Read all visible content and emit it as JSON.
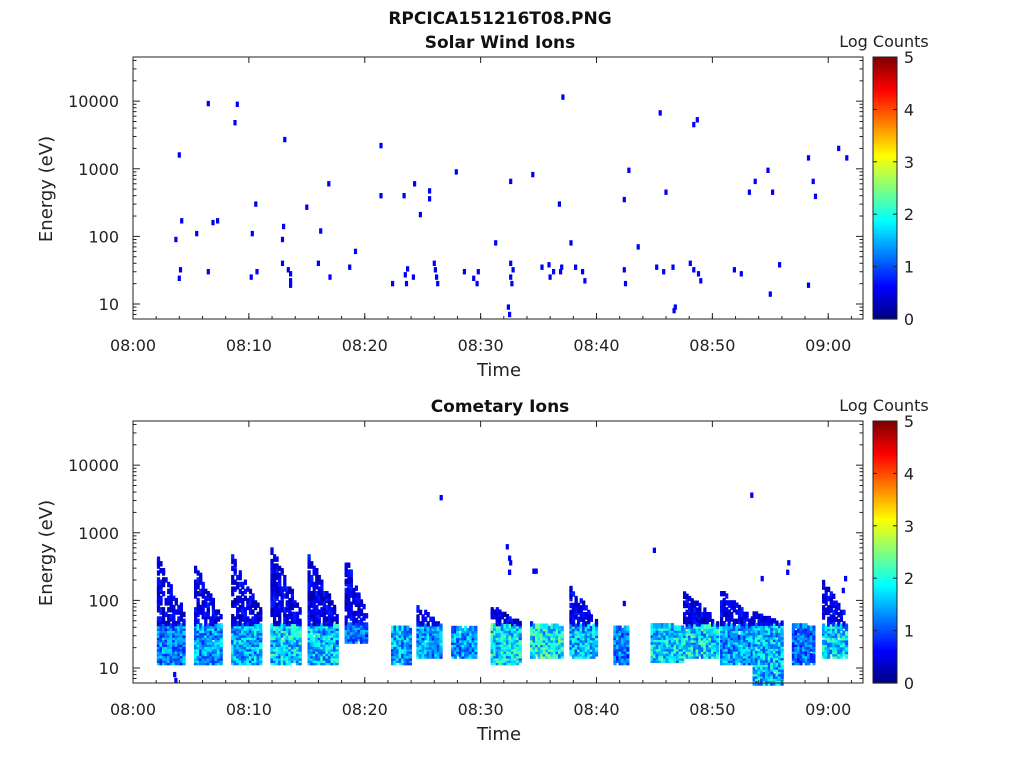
{
  "figure": {
    "title": "RPCICA151216T08.PNG"
  },
  "colormap": {
    "stops": [
      "#00007f",
      "#0000ff",
      "#007fff",
      "#00ffff",
      "#7fff7f",
      "#ffff00",
      "#ff7f00",
      "#ff0000",
      "#7f0000"
    ]
  },
  "chart_data": [
    {
      "type": "heatmap",
      "title": "Solar Wind Ions",
      "xlabel": "Time",
      "ylabel": "Energy (eV)",
      "yscale": "log",
      "ylim": [
        6,
        45000
      ],
      "xlim_minutes_after_0800": [
        0,
        63
      ],
      "xticks": [
        "08:00",
        "08:10",
        "08:20",
        "08:30",
        "08:40",
        "08:50",
        "09:00"
      ],
      "yticks": [
        "10",
        "100",
        "1000",
        "10000"
      ],
      "colorbar": {
        "label": "Log Counts",
        "range": [
          0,
          5
        ],
        "ticks": [
          "0",
          "1",
          "2",
          "3",
          "4",
          "5"
        ]
      },
      "grid": false,
      "cells": [
        [
          3.7,
          90,
          0.6
        ],
        [
          4.0,
          1600,
          0.6
        ],
        [
          4.2,
          170,
          0.6
        ],
        [
          5.5,
          110,
          0.6
        ],
        [
          6.5,
          9200,
          0.6
        ],
        [
          6.9,
          160,
          0.6
        ],
        [
          7.3,
          170,
          0.6
        ],
        [
          8.8,
          4800,
          0.6
        ],
        [
          9.0,
          9000,
          0.6
        ],
        [
          10.3,
          110,
          0.6
        ],
        [
          10.6,
          300,
          0.6
        ],
        [
          12.9,
          90,
          0.6
        ],
        [
          13.0,
          140,
          0.6
        ],
        [
          13.1,
          2700,
          0.6
        ],
        [
          15.0,
          270,
          0.6
        ],
        [
          16.2,
          120,
          0.6
        ],
        [
          16.9,
          600,
          0.6
        ],
        [
          19.2,
          60,
          0.6
        ],
        [
          21.4,
          2200,
          0.6
        ],
        [
          21.4,
          400,
          0.6
        ],
        [
          23.4,
          400,
          0.6
        ],
        [
          24.3,
          600,
          0.6
        ],
        [
          24.8,
          210,
          0.6
        ],
        [
          25.6,
          470,
          0.6
        ],
        [
          25.6,
          360,
          0.6
        ],
        [
          27.9,
          900,
          0.6
        ],
        [
          31.3,
          80,
          0.6
        ],
        [
          32.6,
          650,
          0.6
        ],
        [
          34.5,
          820,
          0.6
        ],
        [
          36.8,
          300,
          0.6
        ],
        [
          37.1,
          11500,
          0.6
        ],
        [
          37.8,
          80,
          0.6
        ],
        [
          42.4,
          350,
          0.6
        ],
        [
          42.8,
          950,
          0.6
        ],
        [
          43.6,
          70,
          0.6
        ],
        [
          45.5,
          6700,
          0.6
        ],
        [
          46.0,
          450,
          0.6
        ],
        [
          48.4,
          4500,
          0.6
        ],
        [
          48.7,
          5300,
          0.6
        ],
        [
          53.2,
          450,
          0.6
        ],
        [
          53.7,
          650,
          0.6
        ],
        [
          54.8,
          950,
          0.6
        ],
        [
          55.2,
          450,
          0.6
        ],
        [
          58.3,
          1450,
          0.6
        ],
        [
          58.7,
          650,
          0.6
        ],
        [
          58.9,
          390,
          0.6
        ],
        [
          60.9,
          2000,
          0.6
        ],
        [
          61.6,
          1450,
          0.6
        ],
        [
          4.1,
          32,
          0.6
        ],
        [
          4.0,
          24,
          0.6
        ],
        [
          6.5,
          30,
          0.6
        ],
        [
          10.2,
          25,
          0.6
        ],
        [
          10.7,
          30,
          0.6
        ],
        [
          12.9,
          40,
          0.6
        ],
        [
          13.4,
          32,
          0.6
        ],
        [
          13.6,
          28,
          0.6
        ],
        [
          13.6,
          22,
          0.6
        ],
        [
          13.6,
          19,
          0.6
        ],
        [
          16.0,
          40,
          0.6
        ],
        [
          17.0,
          25,
          0.6
        ],
        [
          18.7,
          35,
          0.6
        ],
        [
          22.4,
          20,
          0.6
        ],
        [
          23.5,
          27,
          0.6
        ],
        [
          23.7,
          33,
          0.6
        ],
        [
          23.6,
          20,
          0.6
        ],
        [
          24.2,
          25,
          0.6
        ],
        [
          26.0,
          40,
          0.6
        ],
        [
          26.1,
          32,
          0.6
        ],
        [
          26.2,
          25,
          0.6
        ],
        [
          26.3,
          20,
          0.6
        ],
        [
          28.6,
          30,
          0.6
        ],
        [
          29.4,
          24,
          0.6
        ],
        [
          29.8,
          30,
          0.6
        ],
        [
          29.7,
          20,
          0.6
        ],
        [
          32.6,
          40,
          0.6
        ],
        [
          32.8,
          32,
          0.6
        ],
        [
          32.6,
          25,
          0.6
        ],
        [
          32.7,
          20,
          0.6
        ],
        [
          32.4,
          9,
          0.6
        ],
        [
          32.5,
          7,
          0.6
        ],
        [
          35.3,
          35,
          0.6
        ],
        [
          35.9,
          38,
          0.6
        ],
        [
          36.3,
          30,
          0.6
        ],
        [
          36.0,
          25,
          0.6
        ],
        [
          36.9,
          30,
          0.6
        ],
        [
          37.0,
          35,
          0.6
        ],
        [
          38.2,
          35,
          0.6
        ],
        [
          38.8,
          30,
          0.6
        ],
        [
          39.0,
          22,
          0.6
        ],
        [
          42.4,
          32,
          0.6
        ],
        [
          42.5,
          20,
          0.6
        ],
        [
          45.2,
          35,
          0.6
        ],
        [
          45.8,
          30,
          0.6
        ],
        [
          46.6,
          35,
          0.6
        ],
        [
          48.1,
          40,
          0.6
        ],
        [
          48.4,
          32,
          0.6
        ],
        [
          48.8,
          28,
          0.6
        ],
        [
          49.0,
          22,
          0.6
        ],
        [
          51.9,
          32,
          0.6
        ],
        [
          52.5,
          28,
          0.6
        ],
        [
          55.0,
          14,
          0.6
        ],
        [
          55.8,
          38,
          0.6
        ],
        [
          58.3,
          19,
          0.6
        ],
        [
          46.7,
          8,
          0.6
        ],
        [
          46.8,
          9,
          0.6
        ]
      ]
    },
    {
      "type": "heatmap",
      "title": "Cometary Ions",
      "xlabel": "Time",
      "ylabel": "Energy (eV)",
      "yscale": "log",
      "ylim": [
        6,
        45000
      ],
      "xlim_minutes_after_0800": [
        0,
        63
      ],
      "xticks": [
        "08:00",
        "08:10",
        "08:20",
        "08:30",
        "08:40",
        "08:50",
        "09:00"
      ],
      "yticks": [
        "10",
        "100",
        "1000",
        "10000"
      ],
      "colorbar": {
        "label": "Log Counts",
        "range": [
          0,
          5
        ],
        "ticks": [
          "0",
          "1",
          "2",
          "3",
          "4",
          "5"
        ]
      },
      "grid": false,
      "note_values": "cells are [minutes after 08:00, energy eV, log counts]",
      "bursts": [
        {
          "t0": 2.2,
          "t1": 4.6,
          "e_top": 420,
          "e_low": 12,
          "core_level": 1.2
        },
        {
          "t0": 5.4,
          "t1": 7.6,
          "e_top": 330,
          "e_low": 12,
          "core_level": 1.3
        },
        {
          "t0": 8.6,
          "t1": 11.2,
          "e_top": 450,
          "e_low": 12,
          "core_level": 1.4
        },
        {
          "t0": 12.0,
          "t1": 14.6,
          "e_top": 600,
          "e_low": 12,
          "core_level": 1.6
        },
        {
          "t0": 15.2,
          "t1": 17.7,
          "e_top": 480,
          "e_low": 12,
          "core_level": 1.5
        },
        {
          "t0": 18.4,
          "t1": 20.2,
          "e_top": 420,
          "e_low": 25,
          "core_level": 1.1
        },
        {
          "t0": 22.4,
          "t1": 24.0,
          "e_top": 40,
          "e_low": 12,
          "core_level": 1.4
        },
        {
          "t0": 24.6,
          "t1": 26.6,
          "e_top": 80,
          "e_low": 15,
          "core_level": 1.3
        },
        {
          "t0": 27.6,
          "t1": 29.7,
          "e_top": 40,
          "e_low": 15,
          "core_level": 1.3
        },
        {
          "t0": 31.0,
          "t1": 33.6,
          "e_top": 80,
          "e_low": 12,
          "core_level": 1.7
        },
        {
          "t0": 34.4,
          "t1": 37.2,
          "e_top": 45,
          "e_low": 15,
          "core_level": 1.8
        },
        {
          "t0": 37.8,
          "t1": 40.2,
          "e_top": 150,
          "e_low": 15,
          "core_level": 1.5
        },
        {
          "t0": 41.6,
          "t1": 42.8,
          "e_top": 40,
          "e_low": 12,
          "core_level": 1.2
        },
        {
          "t0": 44.8,
          "t1": 47.6,
          "e_top": 45,
          "e_low": 13,
          "core_level": 1.6
        },
        {
          "t0": 47.6,
          "t1": 50.6,
          "e_top": 130,
          "e_low": 15,
          "core_level": 1.7
        },
        {
          "t0": 50.8,
          "t1": 53.6,
          "e_top": 140,
          "e_low": 12,
          "core_level": 1.3
        },
        {
          "t0": 53.6,
          "t1": 56.2,
          "e_top": 70,
          "e_low": 6,
          "core_level": 1.5
        },
        {
          "t0": 57.0,
          "t1": 58.8,
          "e_top": 45,
          "e_low": 12,
          "core_level": 1.1
        },
        {
          "t0": 59.6,
          "t1": 61.7,
          "e_top": 200,
          "e_low": 15,
          "core_level": 1.6
        }
      ],
      "cells": [
        [
          26.6,
          3300,
          0.6
        ],
        [
          32.3,
          620,
          0.6
        ],
        [
          32.5,
          420,
          0.6
        ],
        [
          32.6,
          360,
          0.6
        ],
        [
          32.5,
          260,
          0.6
        ],
        [
          34.6,
          270,
          0.6
        ],
        [
          34.8,
          270,
          0.6
        ],
        [
          37.8,
          150,
          0.6
        ],
        [
          45.0,
          550,
          0.6
        ],
        [
          53.4,
          3600,
          0.6
        ],
        [
          54.3,
          210,
          0.6
        ],
        [
          56.6,
          360,
          0.6
        ],
        [
          56.5,
          260,
          0.6
        ],
        [
          61.5,
          210,
          0.6
        ],
        [
          61.3,
          140,
          0.6
        ],
        [
          42.4,
          90,
          0.6
        ],
        [
          39.4,
          60,
          0.6
        ],
        [
          3.6,
          8,
          0.6
        ],
        [
          3.7,
          6.5,
          0.6
        ],
        [
          55.0,
          8,
          0.6
        ],
        [
          55.1,
          6.5,
          0.6
        ]
      ]
    }
  ]
}
